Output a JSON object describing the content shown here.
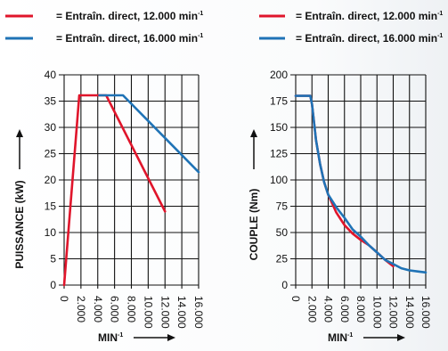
{
  "chart_data": [
    {
      "type": "line",
      "ylabel": "PUISSANCE (kW)",
      "xlabel": "MIN",
      "xlabel_sup": "-1",
      "x_ticks": [
        "0",
        "2.000",
        "4.000",
        "6.000",
        "8.000",
        "10.000",
        "12.000",
        "14.000",
        "16.000"
      ],
      "y_ticks": [
        "0",
        "5",
        "10",
        "15",
        "20",
        "25",
        "30",
        "35",
        "40"
      ],
      "xlim": [
        0,
        16000
      ],
      "ylim": [
        0,
        40
      ],
      "grid": true,
      "legend_position": "top",
      "series": [
        {
          "name": "= Entraîn. direct, 12.000 min",
          "name_sup": "-1",
          "color": "#e0152b",
          "x": [
            0,
            1800,
            5000,
            12000
          ],
          "y": [
            0,
            36.1,
            36.1,
            14
          ]
        },
        {
          "name": "= Entraîn. direct, 16.000 min",
          "name_sup": "-1",
          "color": "#1f73b6",
          "x": [
            4200,
            7000,
            16000
          ],
          "y": [
            36.1,
            36.1,
            21.5
          ]
        }
      ]
    },
    {
      "type": "line",
      "ylabel": "COUPLE (Nm)",
      "xlabel": "MIN",
      "xlabel_sup": "-1",
      "x_ticks": [
        "0",
        "2.000",
        "4.000",
        "6.000",
        "8.000",
        "10.000",
        "12.000",
        "14.000",
        "16.000"
      ],
      "y_ticks": [
        "0",
        "25",
        "50",
        "75",
        "100",
        "125",
        "150",
        "175",
        "200"
      ],
      "xlim": [
        0,
        16000
      ],
      "ylim": [
        0,
        200
      ],
      "grid": true,
      "legend_position": "top",
      "series": [
        {
          "name": "= Entraîn. direct, 12.000 min",
          "name_sup": "-1",
          "color": "#e0152b",
          "x": [
            0,
            1800,
            2000,
            2500,
            3000,
            3500,
            4000,
            5000,
            6000,
            7000,
            8000,
            9000,
            10000,
            11000,
            12000
          ],
          "y": [
            180,
            180,
            172,
            138,
            115,
            98,
            86,
            69,
            57,
            49,
            43,
            38,
            31,
            24,
            18
          ]
        },
        {
          "name": "= Entraîn. direct, 16.000 min",
          "name_sup": "-1",
          "color": "#1f73b6",
          "x": [
            0,
            1800,
            2000,
            2500,
            3000,
            3500,
            4000,
            5000,
            6000,
            7000,
            8000,
            9000,
            10000,
            11000,
            12000,
            13000,
            14000,
            15000,
            16000
          ],
          "y": [
            180,
            180,
            172,
            138,
            115,
            98,
            86,
            74,
            64,
            53,
            46,
            38,
            31,
            24,
            20,
            16,
            14,
            13,
            12
          ]
        }
      ]
    }
  ]
}
